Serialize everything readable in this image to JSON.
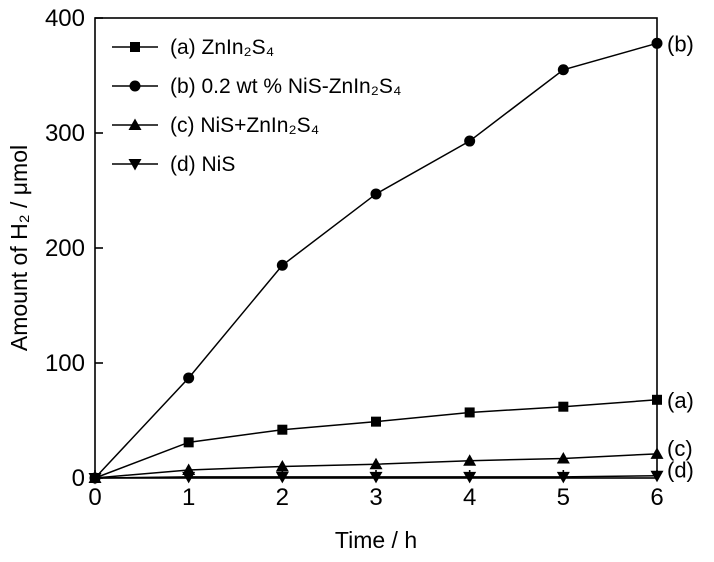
{
  "chart_data": {
    "type": "line",
    "title": "",
    "xlabel": "Time / h",
    "ylabel": "Amount of H₂ / μmol",
    "xlim": [
      0,
      6
    ],
    "ylim": [
      0,
      400
    ],
    "xticks": [
      0,
      1,
      2,
      3,
      4,
      5,
      6
    ],
    "yticks": [
      0,
      100,
      200,
      300,
      400
    ],
    "grid": false,
    "legend_position": "upper-left",
    "x": [
      0,
      1,
      2,
      3,
      4,
      5,
      6
    ],
    "series": [
      {
        "name": "(a) ZnIn₂S₄",
        "marker": "square",
        "end_label": "(a)",
        "values": [
          0,
          31,
          42,
          49,
          57,
          62,
          68
        ]
      },
      {
        "name": "(b) 0.2 wt % NiS-ZnIn₂S₄",
        "marker": "circle",
        "end_label": "(b)",
        "values": [
          0,
          87,
          185,
          247,
          293,
          355,
          378
        ]
      },
      {
        "name": "(c) NiS+ZnIn₂S₄",
        "marker": "triangle-up",
        "end_label": "(c)",
        "values": [
          0,
          7,
          10,
          12,
          15,
          17,
          21
        ]
      },
      {
        "name": "(d) NiS",
        "marker": "triangle-down",
        "end_label": "(d)",
        "values": [
          0,
          1,
          1,
          1,
          1,
          1,
          2
        ]
      }
    ],
    "colors": {
      "line": "#000000",
      "marker": "#000000",
      "background": "#ffffff"
    }
  }
}
